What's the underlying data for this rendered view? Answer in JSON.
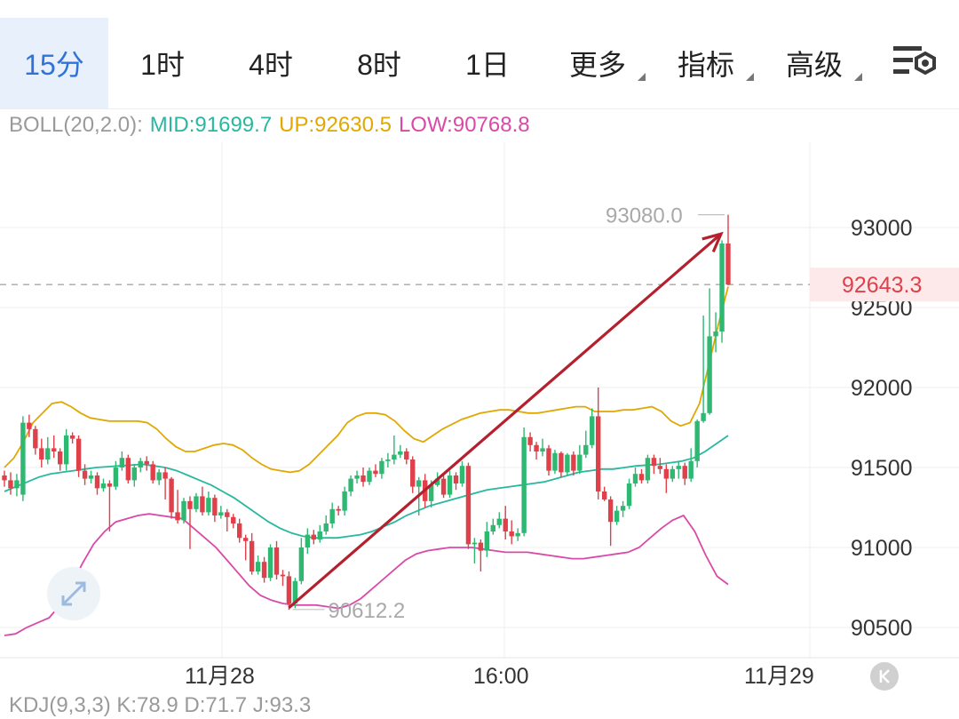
{
  "tabs": [
    {
      "label": "15分",
      "active": true
    },
    {
      "label": "1时",
      "active": false
    },
    {
      "label": "4时",
      "active": false
    },
    {
      "label": "8时",
      "active": false
    },
    {
      "label": "1日",
      "active": false
    },
    {
      "label": "更多",
      "active": false,
      "dropdown": true
    },
    {
      "label": "指标",
      "active": false,
      "dropdown": true
    },
    {
      "label": "高级",
      "active": false,
      "dropdown": true
    }
  ],
  "settings_icon": "chart-settings-icon",
  "legend": {
    "name": "BOLL(20,2.0):",
    "mid": "MID:91699.7",
    "up": "UP:92630.5",
    "low": "LOW:90768.8"
  },
  "kdj_legend": "KDJ(9,3,3)  K:78.9  D:71.7  J:93.3",
  "colors": {
    "up_candle": "#2eb872",
    "down_candle": "#e0404a",
    "mid_line": "#28b8a0",
    "up_line": "#e0a800",
    "low_line": "#d94aa8",
    "arrow": "#b5202e",
    "active_tab": "#2f73d9"
  },
  "chart_data": {
    "type": "candlestick",
    "y_axis_labels": [
      "93000",
      "92500",
      "92000",
      "91500",
      "91000",
      "90500"
    ],
    "y_axis_values": [
      93000,
      92500,
      92000,
      91500,
      91000,
      90500
    ],
    "ylim": [
      90450,
      93600
    ],
    "x_axis_labels": [
      "11月28",
      "16:00",
      "11月29"
    ],
    "current_price": "92643.3",
    "current_price_value": 92643.3,
    "high_annotation": "93080.0",
    "high_value": 93080.0,
    "low_annotation": "90612.2",
    "low_value": 90612.2,
    "candles": [
      [
        91450,
        91420,
        91480,
        91380
      ],
      [
        91420,
        91370,
        91470,
        91330
      ],
      [
        91370,
        91420,
        91460,
        91320
      ],
      [
        91330,
        91780,
        91820,
        91290
      ],
      [
        91780,
        91740,
        91830,
        91690
      ],
      [
        91740,
        91620,
        91760,
        91580
      ],
      [
        91620,
        91550,
        91680,
        91500
      ],
      [
        91550,
        91620,
        91690,
        91520
      ],
      [
        91620,
        91600,
        91700,
        91560
      ],
      [
        91600,
        91520,
        91620,
        91480
      ],
      [
        91520,
        91700,
        91740,
        91480
      ],
      [
        91700,
        91680,
        91720,
        91650
      ],
      [
        91680,
        91480,
        91700,
        91440
      ],
      [
        91480,
        91430,
        91520,
        91390
      ],
      [
        91430,
        91450,
        91480,
        91400
      ],
      [
        91450,
        91370,
        91470,
        91330
      ],
      [
        91370,
        91400,
        91430,
        91350
      ],
      [
        91400,
        91380,
        91420,
        91100
      ],
      [
        91380,
        91500,
        91540,
        91360
      ],
      [
        91500,
        91560,
        91600,
        91480
      ],
      [
        91560,
        91420,
        91580,
        91400
      ],
      [
        91420,
        91500,
        91520,
        91380
      ],
      [
        91500,
        91540,
        91560,
        91470
      ],
      [
        91540,
        91520,
        91570,
        91480
      ],
      [
        91520,
        91420,
        91540,
        91400
      ],
      [
        91420,
        91470,
        91490,
        91390
      ],
      [
        91470,
        91430,
        91500,
        91300
      ],
      [
        91430,
        91220,
        91440,
        91180
      ],
      [
        91220,
        91170,
        91360,
        91150
      ],
      [
        91170,
        91290,
        91310,
        91150
      ],
      [
        91290,
        91240,
        91320,
        90990
      ],
      [
        91240,
        91320,
        91340,
        91220
      ],
      [
        91320,
        91220,
        91380,
        91200
      ],
      [
        91220,
        91310,
        91350,
        91200
      ],
      [
        91310,
        91200,
        91330,
        91160
      ],
      [
        91200,
        91220,
        91260,
        91180
      ],
      [
        91220,
        91190,
        91240,
        91100
      ],
      [
        91190,
        91150,
        91210,
        91120
      ],
      [
        91150,
        91060,
        91180,
        91030
      ],
      [
        91060,
        91040,
        91080,
        90920
      ],
      [
        91040,
        90850,
        91090,
        90830
      ],
      [
        90850,
        90910,
        90950,
        90830
      ],
      [
        90910,
        90810,
        90940,
        90780
      ],
      [
        90810,
        91000,
        91020,
        90790
      ],
      [
        91000,
        90830,
        91040,
        90800
      ],
      [
        90830,
        90820,
        90860,
        90760
      ],
      [
        90820,
        90650,
        90850,
        90610
      ],
      [
        90650,
        90790,
        90810,
        90620
      ],
      [
        90790,
        91000,
        91060,
        90770
      ],
      [
        91000,
        91080,
        91120,
        90960
      ],
      [
        91080,
        91050,
        91110,
        91020
      ],
      [
        91050,
        91100,
        91140,
        91030
      ],
      [
        91100,
        91150,
        91200,
        91080
      ],
      [
        91150,
        91240,
        91280,
        91120
      ],
      [
        91240,
        91230,
        91260,
        91200
      ],
      [
        91230,
        91350,
        91380,
        91200
      ],
      [
        91350,
        91430,
        91450,
        91320
      ],
      [
        91430,
        91450,
        91480,
        91400
      ],
      [
        91450,
        91410,
        91500,
        91380
      ],
      [
        91410,
        91480,
        91500,
        91390
      ],
      [
        91480,
        91460,
        91520,
        91440
      ],
      [
        91460,
        91540,
        91560,
        91430
      ],
      [
        91540,
        91550,
        91590,
        91500
      ],
      [
        91550,
        91580,
        91700,
        91520
      ],
      [
        91580,
        91600,
        91640,
        91560
      ],
      [
        91600,
        91550,
        91620,
        91520
      ],
      [
        91550,
        91380,
        91570,
        91340
      ],
      [
        91380,
        91420,
        91440,
        91200
      ],
      [
        91420,
        91290,
        91460,
        91250
      ],
      [
        91290,
        91390,
        91420,
        91250
      ],
      [
        91390,
        91430,
        91470,
        91380
      ],
      [
        91430,
        91330,
        91450,
        91310
      ],
      [
        91330,
        91450,
        91480,
        91310
      ],
      [
        91450,
        91400,
        91470,
        91360
      ],
      [
        91400,
        91510,
        91540,
        91380
      ],
      [
        91510,
        91020,
        91530,
        90990
      ],
      [
        91020,
        91030,
        91060,
        90900
      ],
      [
        91030,
        90980,
        91050,
        90850
      ],
      [
        90980,
        91100,
        91160,
        90940
      ],
      [
        91100,
        91140,
        91180,
        91080
      ],
      [
        91140,
        91180,
        91220,
        91120
      ],
      [
        91180,
        91100,
        91260,
        91050
      ],
      [
        91100,
        91070,
        91170,
        91020
      ],
      [
        91070,
        91090,
        91120,
        91040
      ],
      [
        91090,
        91690,
        91750,
        91070
      ],
      [
        91690,
        91640,
        91720,
        91600
      ],
      [
        91640,
        91600,
        91660,
        91550
      ],
      [
        91600,
        91620,
        91680,
        91570
      ],
      [
        91620,
        91480,
        91640,
        91450
      ],
      [
        91480,
        91590,
        91610,
        91460
      ],
      [
        91590,
        91470,
        91600,
        91440
      ],
      [
        91470,
        91580,
        91590,
        91450
      ],
      [
        91580,
        91480,
        91600,
        91450
      ],
      [
        91480,
        91580,
        91640,
        91460
      ],
      [
        91580,
        91640,
        91730,
        91560
      ],
      [
        91640,
        91820,
        91870,
        91620
      ],
      [
        91820,
        91350,
        92000,
        91300
      ],
      [
        91350,
        91300,
        91380,
        91290
      ],
      [
        91300,
        91160,
        91320,
        91010
      ],
      [
        91160,
        91230,
        91260,
        91140
      ],
      [
        91230,
        91260,
        91290,
        91190
      ],
      [
        91260,
        91400,
        91430,
        91240
      ],
      [
        91400,
        91460,
        91500,
        91380
      ],
      [
        91460,
        91420,
        91490,
        91400
      ],
      [
        91420,
        91560,
        91580,
        91400
      ],
      [
        91560,
        91510,
        91580,
        91460
      ],
      [
        91510,
        91490,
        91560,
        91460
      ],
      [
        91490,
        91430,
        91520,
        91340
      ],
      [
        91430,
        91490,
        91510,
        91410
      ],
      [
        91490,
        91510,
        91540,
        91430
      ],
      [
        91510,
        91430,
        91530,
        91390
      ],
      [
        91430,
        91540,
        91620,
        91410
      ],
      [
        91540,
        91790,
        91800,
        91500
      ],
      [
        91790,
        91840,
        92450,
        91780
      ],
      [
        91840,
        92320,
        92620,
        91830
      ],
      [
        92320,
        92350,
        92470,
        92220
      ],
      [
        92350,
        92900,
        92920,
        92280
      ],
      [
        92900,
        92643.3,
        93080,
        92640
      ]
    ],
    "mid_line": [
      91350,
      91380,
      91410,
      91440,
      91460,
      91470,
      91480,
      91490,
      91500,
      91505,
      91510,
      91515,
      91520,
      91510,
      91500,
      91480,
      91450,
      91420,
      91390,
      91350,
      91310,
      91260,
      91210,
      91160,
      91120,
      91090,
      91070,
      91060,
      91060,
      91060,
      91070,
      91080,
      91100,
      91130,
      91160,
      91200,
      91230,
      91260,
      91280,
      91300,
      91320,
      91340,
      91360,
      91370,
      91380,
      91390,
      91400,
      91410,
      91430,
      91450,
      91470,
      91480,
      91490,
      91490,
      91500,
      91510,
      91515,
      91520,
      91530,
      91540,
      91560,
      91600,
      91650,
      91699.7
    ],
    "up_line": [
      91500,
      91560,
      91660,
      91780,
      91840,
      91900,
      91910,
      91880,
      91840,
      91810,
      91800,
      91790,
      91790,
      91790,
      91790,
      91780,
      91740,
      91680,
      91630,
      91600,
      91600,
      91620,
      91640,
      91650,
      91640,
      91610,
      91560,
      91520,
      91490,
      91480,
      91470,
      91480,
      91520,
      91580,
      91640,
      91700,
      91780,
      91820,
      91840,
      91840,
      91830,
      91790,
      91730,
      91680,
      91660,
      91700,
      91740,
      91770,
      91800,
      91820,
      91840,
      91850,
      91860,
      91860,
      91850,
      91840,
      91840,
      91850,
      91860,
      91870,
      91880,
      91880,
      91850,
      91850,
      91850,
      91860,
      91860,
      91870,
      91880,
      91850,
      91790,
      91760,
      91780,
      91900,
      92150,
      92400,
      92630.5
    ],
    "low_line": [
      90450,
      90460,
      90500,
      90530,
      90560,
      90640,
      90760,
      90900,
      91020,
      91100,
      91160,
      91180,
      91200,
      91210,
      91200,
      91190,
      91180,
      91120,
      91060,
      91000,
      90920,
      90840,
      90760,
      90700,
      90670,
      90650,
      90640,
      90640,
      90640,
      90630,
      90620,
      90640,
      90680,
      90740,
      90800,
      90860,
      90920,
      90960,
      90980,
      90990,
      91000,
      91000,
      91000,
      90990,
      90980,
      90970,
      90970,
      90970,
      90960,
      90950,
      90940,
      90930,
      90930,
      90940,
      90950,
      90960,
      90970,
      91000,
      91060,
      91120,
      91170,
      91200,
      91100,
      90950,
      90820,
      90768.8
    ]
  }
}
